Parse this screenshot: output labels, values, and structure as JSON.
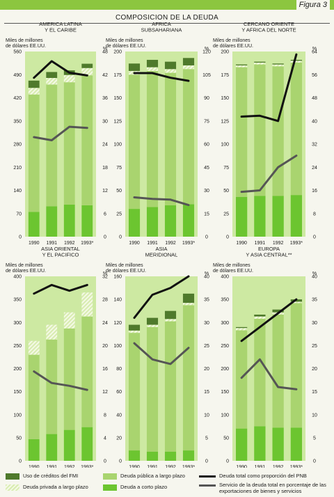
{
  "header": {
    "figure_label": "Figura 3",
    "title": "COMPOSICION DE LA DEUDA"
  },
  "colors": {
    "fmi": "#4f7a2c",
    "private_long": "#d8ecb0",
    "public_long": "#a9d46f",
    "short": "#6cc530",
    "panel_bg": "#cde9a2",
    "debt_gnp_line": "#111111",
    "service_line": "#555555"
  },
  "legend": {
    "items": [
      {
        "label": "Uso de créditos del FMI",
        "kind": "fmi"
      },
      {
        "label": "Deuda privada a largo plazo",
        "kind": "private_long"
      },
      {
        "label": "Deuda pública a largo plazo",
        "kind": "public_long"
      },
      {
        "label": "Deuda a corto plazo",
        "kind": "short"
      },
      {
        "label": "Deuda total como proporción del PNB",
        "kind": "debt_gnp_line"
      },
      {
        "label": "Servicio de la deuda total en porcentaje de las exportaciones de bienes y servicios",
        "kind": "service_line"
      }
    ]
  },
  "chart_data": [
    {
      "type": "bar",
      "title": "AMERICA LATINA\nY EL CARIBE",
      "ylabel": "Miles de millones\nde dólares EE.UU.",
      "y2label": "%",
      "categories": [
        "1990",
        "1991",
        "1992",
        "1993*"
      ],
      "ylim": [
        0,
        560
      ],
      "yticks": [
        "0",
        "70",
        "140",
        "210",
        "280",
        "350",
        "420",
        "490",
        "560"
      ],
      "y2lim": [
        0,
        48
      ],
      "y2ticks": [
        "0",
        "6",
        "12",
        "18",
        "24",
        "30",
        "36",
        "42",
        "48"
      ],
      "series": [
        {
          "key": "short",
          "values": [
            75,
            92,
            97,
            95
          ]
        },
        {
          "key": "public_long",
          "values": [
            355,
            368,
            370,
            393
          ]
        },
        {
          "key": "private_long",
          "values": [
            20,
            20,
            22,
            22
          ]
        },
        {
          "key": "fmi",
          "values": [
            22,
            18,
            14,
            13
          ]
        }
      ],
      "lines": [
        {
          "key": "debt_gnp_line",
          "values": [
            41.2,
            45.5,
            42.5,
            41.8
          ]
        },
        {
          "key": "service_line",
          "values": [
            25.8,
            25.0,
            28.5,
            28.2
          ]
        }
      ]
    },
    {
      "type": "bar",
      "title": "AFRICA\nSUBSAHARIANA",
      "ylabel": "Miles de millones\nde dólares EE.UU.",
      "y2label": "%",
      "categories": [
        "1990",
        "1991",
        "1992",
        "1993*"
      ],
      "ylim": [
        0,
        200
      ],
      "yticks": [
        "0",
        "25",
        "50",
        "75",
        "100",
        "125",
        "150",
        "175",
        "200"
      ],
      "y2lim": [
        0,
        120
      ],
      "y2ticks": [
        "0",
        "15",
        "30",
        "45",
        "60",
        "75",
        "90",
        "105",
        "120"
      ],
      "series": [
        {
          "key": "short",
          "values": [
            30,
            32,
            34,
            35
          ]
        },
        {
          "key": "public_long",
          "values": [
            145,
            147,
            143,
            146
          ]
        },
        {
          "key": "private_long",
          "values": [
            4,
            4,
            4,
            4
          ]
        },
        {
          "key": "fmi",
          "values": [
            8,
            8,
            8,
            8
          ]
        }
      ],
      "lines": [
        {
          "key": "debt_gnp_line",
          "values": [
            106,
            106,
            103,
            101
          ]
        },
        {
          "key": "service_line",
          "values": [
            25.5,
            24.5,
            24.0,
            20.5
          ]
        }
      ]
    },
    {
      "type": "bar",
      "title": "CERCANO ORIENTE\nY AFRICA DEL NORTE",
      "ylabel": "Miles de millones\nde dólares EE.UU.",
      "y2label": "%",
      "categories": [
        "1990",
        "1991",
        "1992",
        "1993*"
      ],
      "ylim": [
        0,
        200
      ],
      "yticks": [
        "0",
        "25",
        "50",
        "75",
        "100",
        "125",
        "150",
        "175",
        "200"
      ],
      "y2lim": [
        0,
        64
      ],
      "y2ticks": [
        "0",
        "8",
        "16",
        "24",
        "32",
        "40",
        "48",
        "56",
        "64"
      ],
      "series": [
        {
          "key": "short",
          "values": [
            43,
            44,
            44,
            45
          ]
        },
        {
          "key": "public_long",
          "values": [
            140,
            142,
            140,
            143
          ]
        },
        {
          "key": "private_long",
          "values": [
            2,
            2,
            2,
            2
          ]
        },
        {
          "key": "fmi",
          "values": [
            1,
            1,
            1,
            1
          ]
        }
      ],
      "lines": [
        {
          "key": "debt_gnp_line",
          "values": [
            41.5,
            41.8,
            40.0,
            63.0
          ]
        },
        {
          "key": "service_line",
          "values": [
            15.5,
            16.0,
            24.0,
            28.0
          ]
        }
      ]
    },
    {
      "type": "bar",
      "title": "ASIA ORIENTAL\nY EL PACIFICO",
      "ylabel": "Miles de millones\nde dólares EE.UU.",
      "y2label": "%",
      "categories": [
        "1990",
        "1991",
        "1992",
        "1993*"
      ],
      "ylim": [
        0,
        400
      ],
      "yticks": [
        "0",
        "50",
        "100",
        "150",
        "200",
        "250",
        "300",
        "350",
        "400"
      ],
      "y2lim": [
        0,
        32
      ],
      "y2ticks": [
        "0",
        "4",
        "8",
        "12",
        "16",
        "20",
        "24",
        "28",
        "32"
      ],
      "series": [
        {
          "key": "short",
          "values": [
            47,
            58,
            67,
            73
          ]
        },
        {
          "key": "public_long",
          "values": [
            183,
            205,
            220,
            240
          ]
        },
        {
          "key": "private_long",
          "values": [
            30,
            32,
            35,
            52
          ]
        },
        {
          "key": "fmi",
          "values": [
            0,
            0,
            0,
            0
          ]
        }
      ],
      "lines": [
        {
          "key": "debt_gnp_line",
          "values": [
            29.0,
            30.5,
            29.5,
            30.5
          ]
        },
        {
          "key": "service_line",
          "values": [
            15.5,
            13.5,
            13.0,
            12.3
          ]
        }
      ]
    },
    {
      "type": "bar",
      "title": "ASIA\nMERIDIONAL",
      "ylabel": "Miles de millones\nde dólares EE.UU.",
      "y2label": "%",
      "categories": [
        "1990",
        "1991",
        "1992",
        "1993*"
      ],
      "ylim": [
        0,
        160
      ],
      "yticks": [
        "0",
        "20",
        "40",
        "60",
        "80",
        "100",
        "120",
        "140",
        "160"
      ],
      "y2lim": [
        0,
        40
      ],
      "y2ticks": [
        "0",
        "5",
        "10",
        "15",
        "20",
        "25",
        "30",
        "35",
        "40"
      ],
      "series": [
        {
          "key": "short",
          "values": [
            9,
            8,
            8,
            9
          ]
        },
        {
          "key": "public_long",
          "values": [
            102,
            108,
            113,
            126
          ]
        },
        {
          "key": "private_long",
          "values": [
            2,
            2,
            2,
            2
          ]
        },
        {
          "key": "fmi",
          "values": [
            5,
            6,
            7,
            8
          ]
        }
      ],
      "lines": [
        {
          "key": "debt_gnp_line",
          "values": [
            31,
            36,
            37.5,
            40.0
          ]
        },
        {
          "key": "service_line",
          "values": [
            25.5,
            22.0,
            21.0,
            24.5
          ]
        }
      ]
    },
    {
      "type": "bar",
      "title": "EUROPA\nY ASIA CENTRAL**",
      "ylabel": "Miles de millones\nde dólares EE.UU.",
      "y2label": "%",
      "categories": [
        "1990",
        "1991",
        "1992",
        "1993*"
      ],
      "ylim": [
        0,
        400
      ],
      "yticks": [
        "0",
        "50",
        "100",
        "150",
        "200",
        "250",
        "300",
        "350",
        "400"
      ],
      "y2lim": [
        0,
        40
      ],
      "y2ticks": [
        "0",
        "5",
        "10",
        "15",
        "20",
        "25",
        "30",
        "35",
        "40"
      ],
      "series": [
        {
          "key": "short",
          "values": [
            70,
            75,
            72,
            72
          ]
        },
        {
          "key": "public_long",
          "values": [
            213,
            233,
            245,
            270
          ]
        },
        {
          "key": "private_long",
          "values": [
            5,
            5,
            5,
            3
          ]
        },
        {
          "key": "fmi",
          "values": [
            2,
            4,
            6,
            5
          ]
        }
      ],
      "lines": [
        {
          "key": "debt_gnp_line",
          "values": [
            26,
            29,
            32,
            35
          ]
        },
        {
          "key": "service_line",
          "values": [
            18,
            22,
            16,
            15.5
          ]
        }
      ]
    }
  ]
}
